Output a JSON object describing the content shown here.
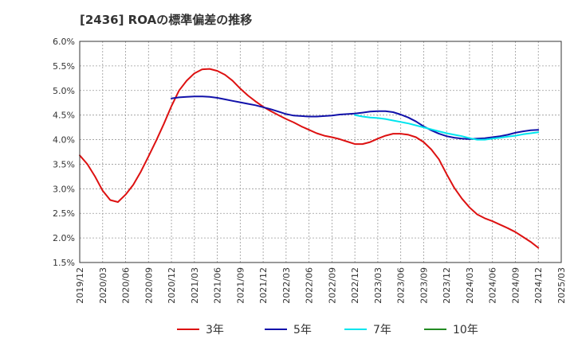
{
  "title": "[2436]  ROAの標準偏差の推移",
  "chart_data": {
    "type": "line",
    "x_ticks": [
      "2019/12",
      "2020/03",
      "2020/06",
      "2020/09",
      "2020/12",
      "2021/03",
      "2021/06",
      "2021/09",
      "2021/12",
      "2022/03",
      "2022/06",
      "2022/09",
      "2022/12",
      "2023/03",
      "2023/06",
      "2023/09",
      "2023/12",
      "2024/03",
      "2024/06",
      "2024/09",
      "2024/12",
      "2025/03"
    ],
    "y_ticks": [
      "1.5%",
      "2.0%",
      "2.5%",
      "3.0%",
      "3.5%",
      "4.0%",
      "4.5%",
      "5.0%",
      "5.5%",
      "6.0%"
    ],
    "ylim": [
      1.5,
      6.0
    ],
    "grid": true,
    "legend_position": "bottom",
    "series": [
      {
        "name": "3年",
        "color": "#dd1111",
        "x": [
          "2019/12",
          "2020/01",
          "2020/02",
          "2020/03",
          "2020/04",
          "2020/05",
          "2020/06",
          "2020/07",
          "2020/08",
          "2020/09",
          "2020/10",
          "2020/11",
          "2020/12",
          "2021/01",
          "2021/02",
          "2021/03",
          "2021/04",
          "2021/05",
          "2021/06",
          "2021/07",
          "2021/08",
          "2021/09",
          "2021/10",
          "2021/11",
          "2021/12",
          "2022/01",
          "2022/02",
          "2022/03",
          "2022/04",
          "2022/05",
          "2022/06",
          "2022/07",
          "2022/08",
          "2022/09",
          "2022/10",
          "2022/11",
          "2022/12",
          "2023/01",
          "2023/02",
          "2023/03",
          "2023/04",
          "2023/05",
          "2023/06",
          "2023/07",
          "2023/08",
          "2023/09",
          "2023/10",
          "2023/11",
          "2023/12",
          "2024/01",
          "2024/02",
          "2024/03",
          "2024/04",
          "2024/05",
          "2024/06",
          "2024/07",
          "2024/08",
          "2024/09",
          "2024/10",
          "2024/11",
          "2024/12"
        ],
        "values": [
          3.68,
          3.5,
          3.25,
          2.96,
          2.77,
          2.73,
          2.88,
          3.08,
          3.35,
          3.66,
          3.98,
          4.32,
          4.68,
          5.0,
          5.2,
          5.35,
          5.43,
          5.44,
          5.4,
          5.32,
          5.2,
          5.04,
          4.9,
          4.78,
          4.67,
          4.58,
          4.5,
          4.42,
          4.35,
          4.27,
          4.2,
          4.13,
          4.08,
          4.05,
          4.01,
          3.96,
          3.91,
          3.91,
          3.95,
          4.02,
          4.08,
          4.12,
          4.12,
          4.1,
          4.05,
          3.95,
          3.8,
          3.6,
          3.3,
          3.02,
          2.8,
          2.62,
          2.48,
          2.4,
          2.34,
          2.27,
          2.2,
          2.12,
          2.02,
          1.92,
          1.8
        ]
      },
      {
        "name": "5年",
        "color": "#1111aa",
        "x": [
          "2020/12",
          "2021/01",
          "2021/02",
          "2021/03",
          "2021/04",
          "2021/05",
          "2021/06",
          "2021/07",
          "2021/08",
          "2021/09",
          "2021/10",
          "2021/11",
          "2021/12",
          "2022/01",
          "2022/02",
          "2022/03",
          "2022/04",
          "2022/05",
          "2022/06",
          "2022/07",
          "2022/08",
          "2022/09",
          "2022/10",
          "2022/11",
          "2022/12",
          "2023/01",
          "2023/02",
          "2023/03",
          "2023/04",
          "2023/05",
          "2023/06",
          "2023/07",
          "2023/08",
          "2023/09",
          "2023/10",
          "2023/11",
          "2023/12",
          "2024/01",
          "2024/02",
          "2024/03",
          "2024/04",
          "2024/05",
          "2024/06",
          "2024/07",
          "2024/08",
          "2024/09",
          "2024/10",
          "2024/11",
          "2024/12"
        ],
        "values": [
          4.84,
          4.86,
          4.87,
          4.88,
          4.88,
          4.87,
          4.85,
          4.82,
          4.79,
          4.76,
          4.73,
          4.7,
          4.66,
          4.62,
          4.57,
          4.52,
          4.49,
          4.48,
          4.47,
          4.47,
          4.48,
          4.49,
          4.51,
          4.52,
          4.53,
          4.55,
          4.57,
          4.58,
          4.58,
          4.56,
          4.51,
          4.45,
          4.37,
          4.27,
          4.19,
          4.12,
          4.07,
          4.04,
          4.02,
          4.01,
          4.02,
          4.03,
          4.05,
          4.07,
          4.1,
          4.14,
          4.17,
          4.19,
          4.2
        ]
      },
      {
        "name": "7年",
        "color": "#00e5ee",
        "x": [
          "2022/12",
          "2023/01",
          "2023/02",
          "2023/03",
          "2023/04",
          "2023/05",
          "2023/06",
          "2023/07",
          "2023/08",
          "2023/09",
          "2023/10",
          "2023/11",
          "2023/12",
          "2024/01",
          "2024/02",
          "2024/03",
          "2024/04",
          "2024/05",
          "2024/06",
          "2024/07",
          "2024/08",
          "2024/09",
          "2024/10",
          "2024/11",
          "2024/12"
        ],
        "values": [
          4.5,
          4.47,
          4.45,
          4.44,
          4.42,
          4.39,
          4.36,
          4.33,
          4.29,
          4.25,
          4.21,
          4.17,
          4.13,
          4.1,
          4.07,
          4.03,
          4.0,
          4.0,
          4.02,
          4.04,
          4.06,
          4.08,
          4.11,
          4.13,
          4.15
        ]
      },
      {
        "name": "10年",
        "color": "#228b22",
        "x": [],
        "values": []
      }
    ]
  }
}
